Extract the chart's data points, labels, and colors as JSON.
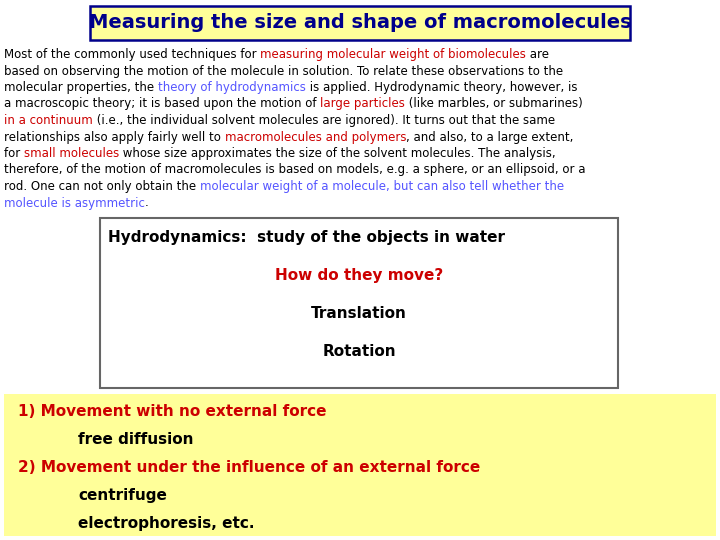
{
  "title": "Measuring the size and shape of macromolecules",
  "title_color": "#00008B",
  "title_bg": "#FFFF99",
  "title_border": "#00008B",
  "bg_color": "#FFFFFF",
  "body_fontsize": 8.5,
  "paragraph": [
    {
      "text": "Most of the commonly used techniques for ",
      "color": "#000000"
    },
    {
      "text": "measuring molecular weight of biomolecules",
      "color": "#CC0000"
    },
    {
      "text": " are",
      "color": "#000000"
    },
    {
      "text": "based on observing the motion of the molecule in solution. To relate these observations to the",
      "color": "#000000"
    },
    {
      "text": "molecular properties, the ",
      "color": "#000000"
    },
    {
      "text": "theory of hydrodynamics",
      "color": "#5555FF"
    },
    {
      "text": " is applied. Hydrodynamic theory, however, is",
      "color": "#000000"
    },
    {
      "text": "a macroscopic theory; it is based upon the motion of ",
      "color": "#000000"
    },
    {
      "text": "large particles",
      "color": "#CC0000"
    },
    {
      "text": " (like marbles, or submarines)",
      "color": "#000000"
    },
    {
      "text": "in a continuum",
      "color": "#CC0000"
    },
    {
      "text": " (i.e., the individual solvent molecules are ignored). It turns out that the same",
      "color": "#000000"
    },
    {
      "text": "relationships also apply fairly well to ",
      "color": "#000000"
    },
    {
      "text": "macromolecules and polymers",
      "color": "#CC0000"
    },
    {
      "text": ", and also, to a large extent,",
      "color": "#000000"
    },
    {
      "text": "for ",
      "color": "#000000"
    },
    {
      "text": "small molecules",
      "color": "#CC0000"
    },
    {
      "text": " whose size approximates the size of the solvent molecules. The analysis,",
      "color": "#000000"
    },
    {
      "text": "therefore, of the motion of macromolecules is based on models, e.g. a sphere, or an ellipsoid, or a",
      "color": "#000000"
    },
    {
      "text": "rod. One can not only obtain the ",
      "color": "#000000"
    },
    {
      "text": "molecular weight of a molecule, but can also tell whether the",
      "color": "#5555FF"
    },
    {
      "text": "molecule is asymmetric",
      "color": "#5555FF"
    },
    {
      "text": ".",
      "color": "#000000"
    }
  ],
  "para_lines": [
    [
      {
        "text": "Most of the commonly used techniques for ",
        "color": "#000000"
      },
      {
        "text": "measuring molecular weight of biomolecules",
        "color": "#CC0000"
      },
      {
        "text": " are",
        "color": "#000000"
      }
    ],
    [
      {
        "text": "based on observing the motion of the molecule in solution. To relate these observations to the",
        "color": "#000000"
      }
    ],
    [
      {
        "text": "molecular properties, the ",
        "color": "#000000"
      },
      {
        "text": "theory of hydrodynamics",
        "color": "#5555FF"
      },
      {
        "text": " is applied. Hydrodynamic theory, however, is",
        "color": "#000000"
      }
    ],
    [
      {
        "text": "a macroscopic theory; it is based upon the motion of ",
        "color": "#000000"
      },
      {
        "text": "large particles",
        "color": "#CC0000"
      },
      {
        "text": " (like marbles, or submarines)",
        "color": "#000000"
      }
    ],
    [
      {
        "text": "in a continuum",
        "color": "#CC0000"
      },
      {
        "text": " (i.e., the individual solvent molecules are ignored). It turns out that the same",
        "color": "#000000"
      }
    ],
    [
      {
        "text": "relationships also apply fairly well to ",
        "color": "#000000"
      },
      {
        "text": "macromolecules and polymers",
        "color": "#CC0000"
      },
      {
        "text": ", and also, to a large extent,",
        "color": "#000000"
      }
    ],
    [
      {
        "text": "for ",
        "color": "#000000"
      },
      {
        "text": "small molecules",
        "color": "#CC0000"
      },
      {
        "text": " whose size approximates the size of the solvent molecules. The analysis,",
        "color": "#000000"
      }
    ],
    [
      {
        "text": "therefore, of the motion of macromolecules is based on models, e.g. a sphere, or an ellipsoid, or a",
        "color": "#000000"
      }
    ],
    [
      {
        "text": "rod. One can not only obtain the ",
        "color": "#000000"
      },
      {
        "text": "molecular weight of a molecule, but can also tell whether the",
        "color": "#5555FF"
      }
    ],
    [
      {
        "text": "molecule is asymmetric",
        "color": "#5555FF"
      },
      {
        "text": ".",
        "color": "#000000"
      }
    ]
  ],
  "box1_lines": [
    {
      "text": "Hydrodynamics:  study of the objects in water",
      "color": "#000000",
      "bold": true,
      "size": 11,
      "align": "left"
    },
    {
      "text": "How do they move?",
      "color": "#CC0000",
      "bold": true,
      "size": 11,
      "align": "center"
    },
    {
      "text": "Translation",
      "color": "#000000",
      "bold": true,
      "size": 11,
      "align": "center"
    },
    {
      "text": "Rotation",
      "color": "#000000",
      "bold": true,
      "size": 11,
      "align": "center"
    }
  ],
  "box2_lines": [
    {
      "text": "1) Movement with no external force",
      "color": "#CC0000",
      "bold": true,
      "size": 11,
      "indent": 0
    },
    {
      "text": "free diffusion",
      "color": "#000000",
      "bold": true,
      "size": 11,
      "indent": 1
    },
    {
      "text": "2) Movement under the influence of an external force",
      "color": "#CC0000",
      "bold": true,
      "size": 11,
      "indent": 0
    },
    {
      "text": "centrifuge",
      "color": "#000000",
      "bold": true,
      "size": 11,
      "indent": 1
    },
    {
      "text": "electrophoresis, etc.",
      "color": "#000000",
      "bold": true,
      "size": 11,
      "indent": 1
    }
  ],
  "box2_bg": "#FFFF99"
}
